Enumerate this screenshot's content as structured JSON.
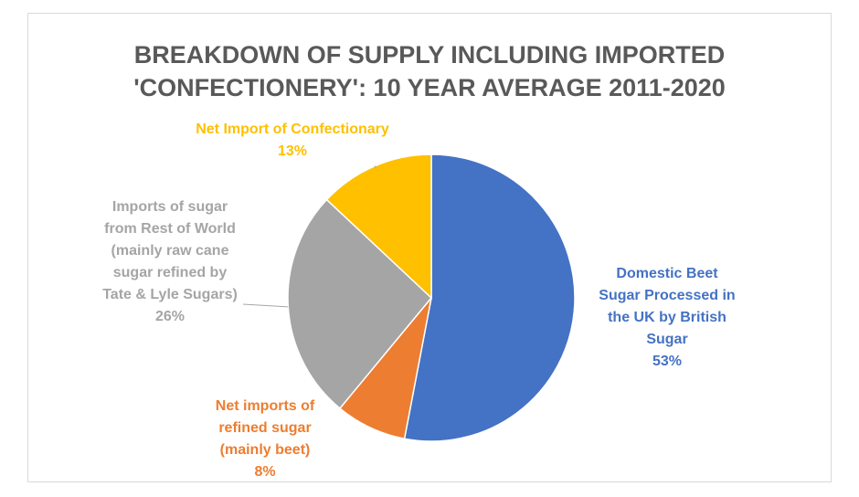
{
  "chart_data": {
    "type": "pie",
    "title": {
      "line1": "BREAKDOWN OF SUPPLY INCLUDING IMPORTED",
      "line2": "'CONFECTIONERY': 10 YEAR AVERAGE 2011-2020"
    },
    "slices": [
      {
        "label_lines": [
          "Domestic Beet",
          "Sugar Processed in",
          "the UK by British",
          "Sugar"
        ],
        "percent_label": "53%",
        "value": 53,
        "color": "#4472c4"
      },
      {
        "label_lines": [
          "Net imports of",
          "refined sugar",
          "(mainly beet)"
        ],
        "percent_label": "8%",
        "value": 8,
        "color": "#ed7d31"
      },
      {
        "label_lines": [
          "Imports of sugar",
          "from Rest of World",
          "(mainly raw cane",
          "sugar refined by",
          "Tate & Lyle Sugars)"
        ],
        "percent_label": "26%",
        "value": 26,
        "color": "#a5a5a5"
      },
      {
        "label_lines": [
          "Net Import of Confectionary"
        ],
        "percent_label": "13%",
        "value": 13,
        "color": "#ffc000"
      }
    ]
  }
}
